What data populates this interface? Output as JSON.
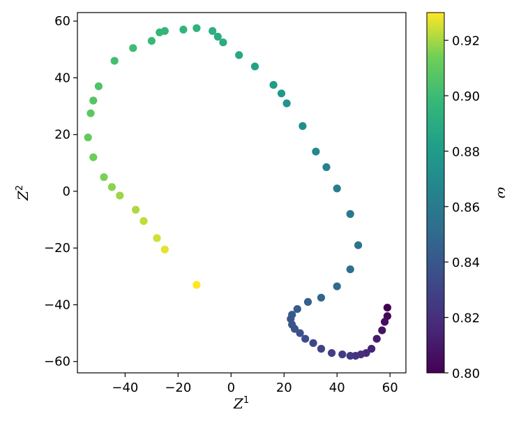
{
  "chart_data": {
    "type": "scatter",
    "title": "",
    "xlabel": "Z",
    "xlabel_sup": "1",
    "ylabel": "Z",
    "ylabel_sup": "2",
    "xlim": [
      -58,
      66
    ],
    "ylim": [
      -64,
      63
    ],
    "xticks": [
      -40,
      -20,
      0,
      20,
      40,
      60
    ],
    "yticks": [
      -60,
      -40,
      -20,
      0,
      20,
      40,
      60
    ],
    "xtick_labels": [
      "−40",
      "−20",
      "0",
      "20",
      "40",
      "60"
    ],
    "ytick_labels": [
      "−60",
      "−40",
      "−20",
      "0",
      "20",
      "40",
      "60"
    ],
    "grid": false,
    "colormap": "viridis",
    "colorbar": {
      "label": "ω",
      "range": [
        0.8,
        0.93
      ],
      "ticks": [
        0.8,
        0.82,
        0.84,
        0.86,
        0.88,
        0.9,
        0.92
      ],
      "tick_labels": [
        "0.80",
        "0.82",
        "0.84",
        "0.86",
        "0.88",
        "0.90",
        "0.92"
      ]
    },
    "points": [
      {
        "x": 59,
        "y": -41,
        "c": 0.8
      },
      {
        "x": 59,
        "y": -44,
        "c": 0.802
      },
      {
        "x": 58,
        "y": -46,
        "c": 0.805
      },
      {
        "x": 57,
        "y": -49,
        "c": 0.808
      },
      {
        "x": 55,
        "y": -52,
        "c": 0.811
      },
      {
        "x": 53,
        "y": -55.5,
        "c": 0.814
      },
      {
        "x": 51,
        "y": -57,
        "c": 0.817
      },
      {
        "x": 49,
        "y": -57.5,
        "c": 0.82
      },
      {
        "x": 47,
        "y": -58,
        "c": 0.822
      },
      {
        "x": 45,
        "y": -58,
        "c": 0.824
      },
      {
        "x": 42,
        "y": -57.5,
        "c": 0.826
      },
      {
        "x": 38,
        "y": -57,
        "c": 0.828
      },
      {
        "x": 34,
        "y": -55.5,
        "c": 0.83
      },
      {
        "x": 31,
        "y": -53.5,
        "c": 0.832
      },
      {
        "x": 28,
        "y": -52,
        "c": 0.834
      },
      {
        "x": 26,
        "y": -50,
        "c": 0.836
      },
      {
        "x": 24,
        "y": -48.5,
        "c": 0.838
      },
      {
        "x": 23,
        "y": -47,
        "c": 0.839
      },
      {
        "x": 22.5,
        "y": -45,
        "c": 0.84
      },
      {
        "x": 23,
        "y": -43.5,
        "c": 0.841
      },
      {
        "x": 25,
        "y": -41.5,
        "c": 0.843
      },
      {
        "x": 29,
        "y": -39,
        "c": 0.845
      },
      {
        "x": 34,
        "y": -37.5,
        "c": 0.847
      },
      {
        "x": 40,
        "y": -33.5,
        "c": 0.85
      },
      {
        "x": 45,
        "y": -27.5,
        "c": 0.853
      },
      {
        "x": 48,
        "y": -19,
        "c": 0.856
      },
      {
        "x": 45,
        "y": -8,
        "c": 0.859
      },
      {
        "x": 40,
        "y": 1,
        "c": 0.862
      },
      {
        "x": 36,
        "y": 8.5,
        "c": 0.865
      },
      {
        "x": 32,
        "y": 14,
        "c": 0.868
      },
      {
        "x": 27,
        "y": 23,
        "c": 0.872
      },
      {
        "x": 21,
        "y": 31,
        "c": 0.876
      },
      {
        "x": 19,
        "y": 34.5,
        "c": 0.878
      },
      {
        "x": 16,
        "y": 37.5,
        "c": 0.88
      },
      {
        "x": 9,
        "y": 44,
        "c": 0.884
      },
      {
        "x": 3,
        "y": 48,
        "c": 0.887
      },
      {
        "x": -3,
        "y": 52.5,
        "c": 0.89
      },
      {
        "x": -5,
        "y": 54.5,
        "c": 0.891
      },
      {
        "x": -7,
        "y": 56.5,
        "c": 0.892
      },
      {
        "x": -13,
        "y": 57.5,
        "c": 0.894
      },
      {
        "x": -18,
        "y": 57,
        "c": 0.895
      },
      {
        "x": -25,
        "y": 56.5,
        "c": 0.896
      },
      {
        "x": -27,
        "y": 56,
        "c": 0.897
      },
      {
        "x": -30,
        "y": 53,
        "c": 0.898
      },
      {
        "x": -37,
        "y": 50.5,
        "c": 0.9
      },
      {
        "x": -44,
        "y": 46,
        "c": 0.902
      },
      {
        "x": -50,
        "y": 37,
        "c": 0.905
      },
      {
        "x": -52,
        "y": 32,
        "c": 0.907
      },
      {
        "x": -53,
        "y": 27.5,
        "c": 0.909
      },
      {
        "x": -54,
        "y": 19,
        "c": 0.911
      },
      {
        "x": -52,
        "y": 12,
        "c": 0.913
      },
      {
        "x": -48,
        "y": 5,
        "c": 0.915
      },
      {
        "x": -45,
        "y": 1.5,
        "c": 0.917
      },
      {
        "x": -42,
        "y": -1.5,
        "c": 0.919
      },
      {
        "x": -36,
        "y": -6.5,
        "c": 0.921
      },
      {
        "x": -33,
        "y": -10.5,
        "c": 0.923
      },
      {
        "x": -28,
        "y": -16.5,
        "c": 0.925
      },
      {
        "x": -25,
        "y": -20.5,
        "c": 0.927
      },
      {
        "x": -13,
        "y": -33,
        "c": 0.93
      }
    ]
  }
}
